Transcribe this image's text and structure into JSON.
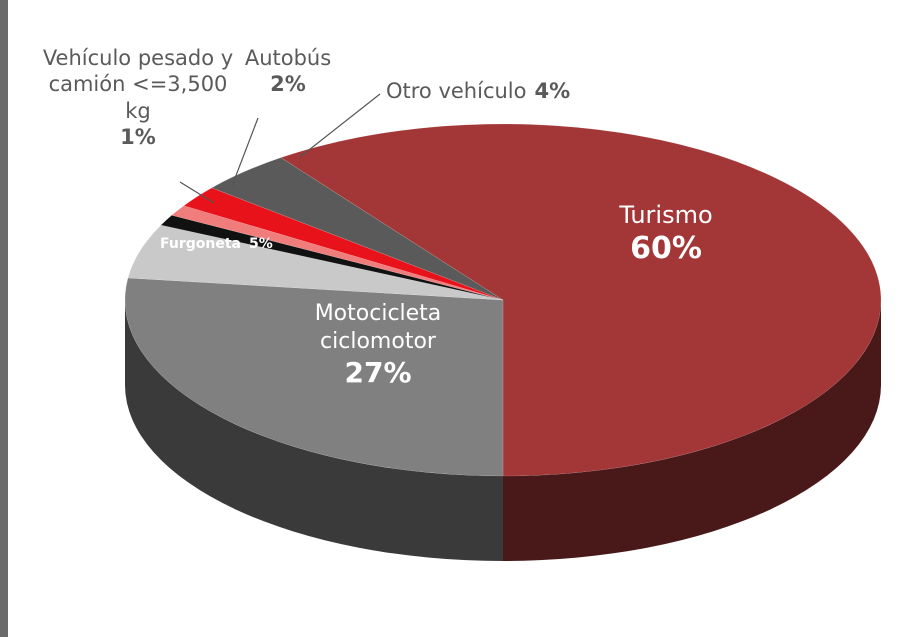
{
  "chart_data": {
    "type": "pie3d",
    "categories": [
      "Turismo",
      "Motocicleta ciclomotor",
      "Furgoneta",
      null,
      "Vehículo pesado y camión <=3,500 kg",
      "Autobús",
      "Otro vehículo"
    ],
    "values": [
      60,
      27,
      5,
      1,
      1,
      2,
      4
    ],
    "value_labels": [
      "60%",
      "27%",
      "5%",
      null,
      "1%",
      "2%",
      "4%"
    ],
    "colors": [
      "#a33636",
      "#808080",
      "#c9c9c9",
      "#111111",
      "#f07c7c",
      "#e8121b",
      "#5a5a5a"
    ]
  }
}
